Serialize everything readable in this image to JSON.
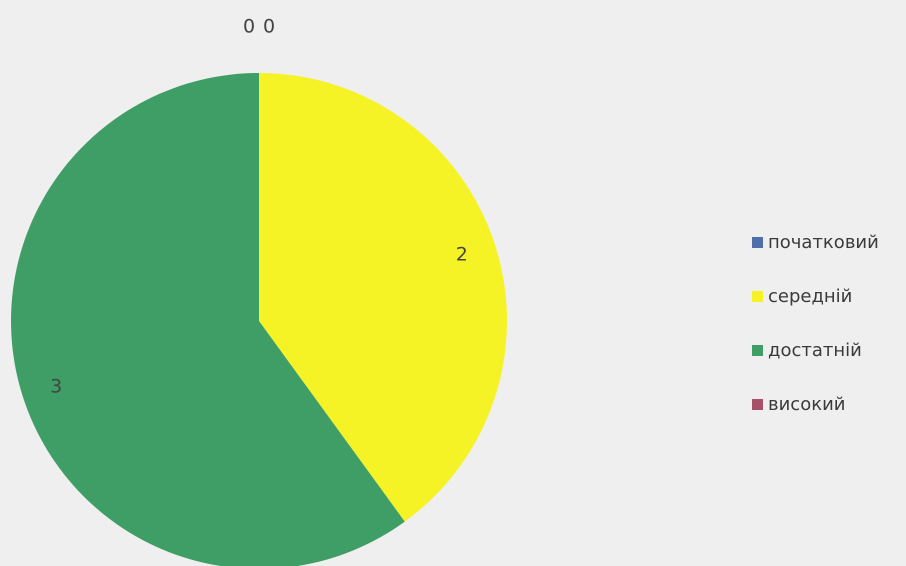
{
  "chart_data": {
    "type": "pie",
    "title": "",
    "categories": [
      "початковий",
      "середній",
      "достатній",
      "високий"
    ],
    "values": [
      0,
      2,
      3,
      0
    ],
    "colors": [
      "#4f6fa8",
      "#f5f226",
      "#3f9e66",
      "#a8506a"
    ],
    "data_labels": [
      "0",
      "2",
      "3",
      "0"
    ],
    "legend_position": "right"
  }
}
